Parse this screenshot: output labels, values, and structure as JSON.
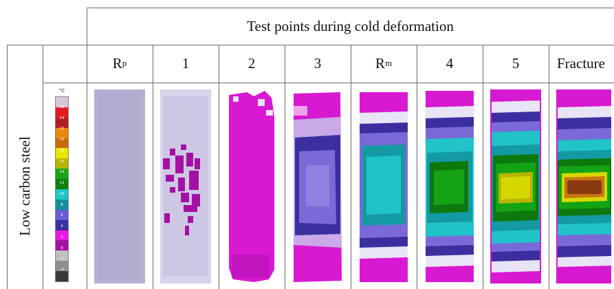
{
  "header": {
    "title": "Test points during cold deformation"
  },
  "columns": [
    {
      "label_main": "R",
      "label_sub": "p"
    },
    {
      "label_main": "1",
      "label_sub": ""
    },
    {
      "label_main": "2",
      "label_sub": ""
    },
    {
      "label_main": "3",
      "label_sub": ""
    },
    {
      "label_main": "R",
      "label_sub": "m"
    },
    {
      "label_main": "4",
      "label_sub": ""
    },
    {
      "label_main": "5",
      "label_sub": ""
    },
    {
      "label_main": "Fracture",
      "label_sub": ""
    }
  ],
  "row": {
    "label": "Low carbon steel"
  },
  "legend": {
    "unit": "°C",
    "ticks": [
      "26",
      "24",
      "22",
      "20",
      "18",
      "16",
      "14",
      "12",
      "10",
      "8",
      "6",
      "4",
      "2",
      "0",
      "-2",
      "-4"
    ],
    "colors": [
      "#d8c7d4",
      "#e31b23",
      "#b01c22",
      "#e8890e",
      "#c86a0a",
      "#e6e600",
      "#b5b500",
      "#1aa31a",
      "#0f7f0f",
      "#1fc6c6",
      "#138f9a",
      "#6a5bd8",
      "#3a2f9c",
      "#e81ae0",
      "#a412a0",
      "#bfbfbf",
      "#8f8f8f",
      "#3a3a3a"
    ]
  },
  "colors": {
    "background": "#e6e1f2",
    "light_purple": "#b7b0d3",
    "magenta": "#d819d2",
    "dark_magenta": "#a410a4",
    "indigo": "#3b2fa0",
    "violet": "#7a6ad8",
    "cyan": "#20c3c8",
    "teal": "#149aa3",
    "green": "#14a314",
    "dark_green": "#0d780d",
    "yellow": "#d6d600",
    "orange": "#c8760f",
    "brown": "#8a3a10"
  }
}
